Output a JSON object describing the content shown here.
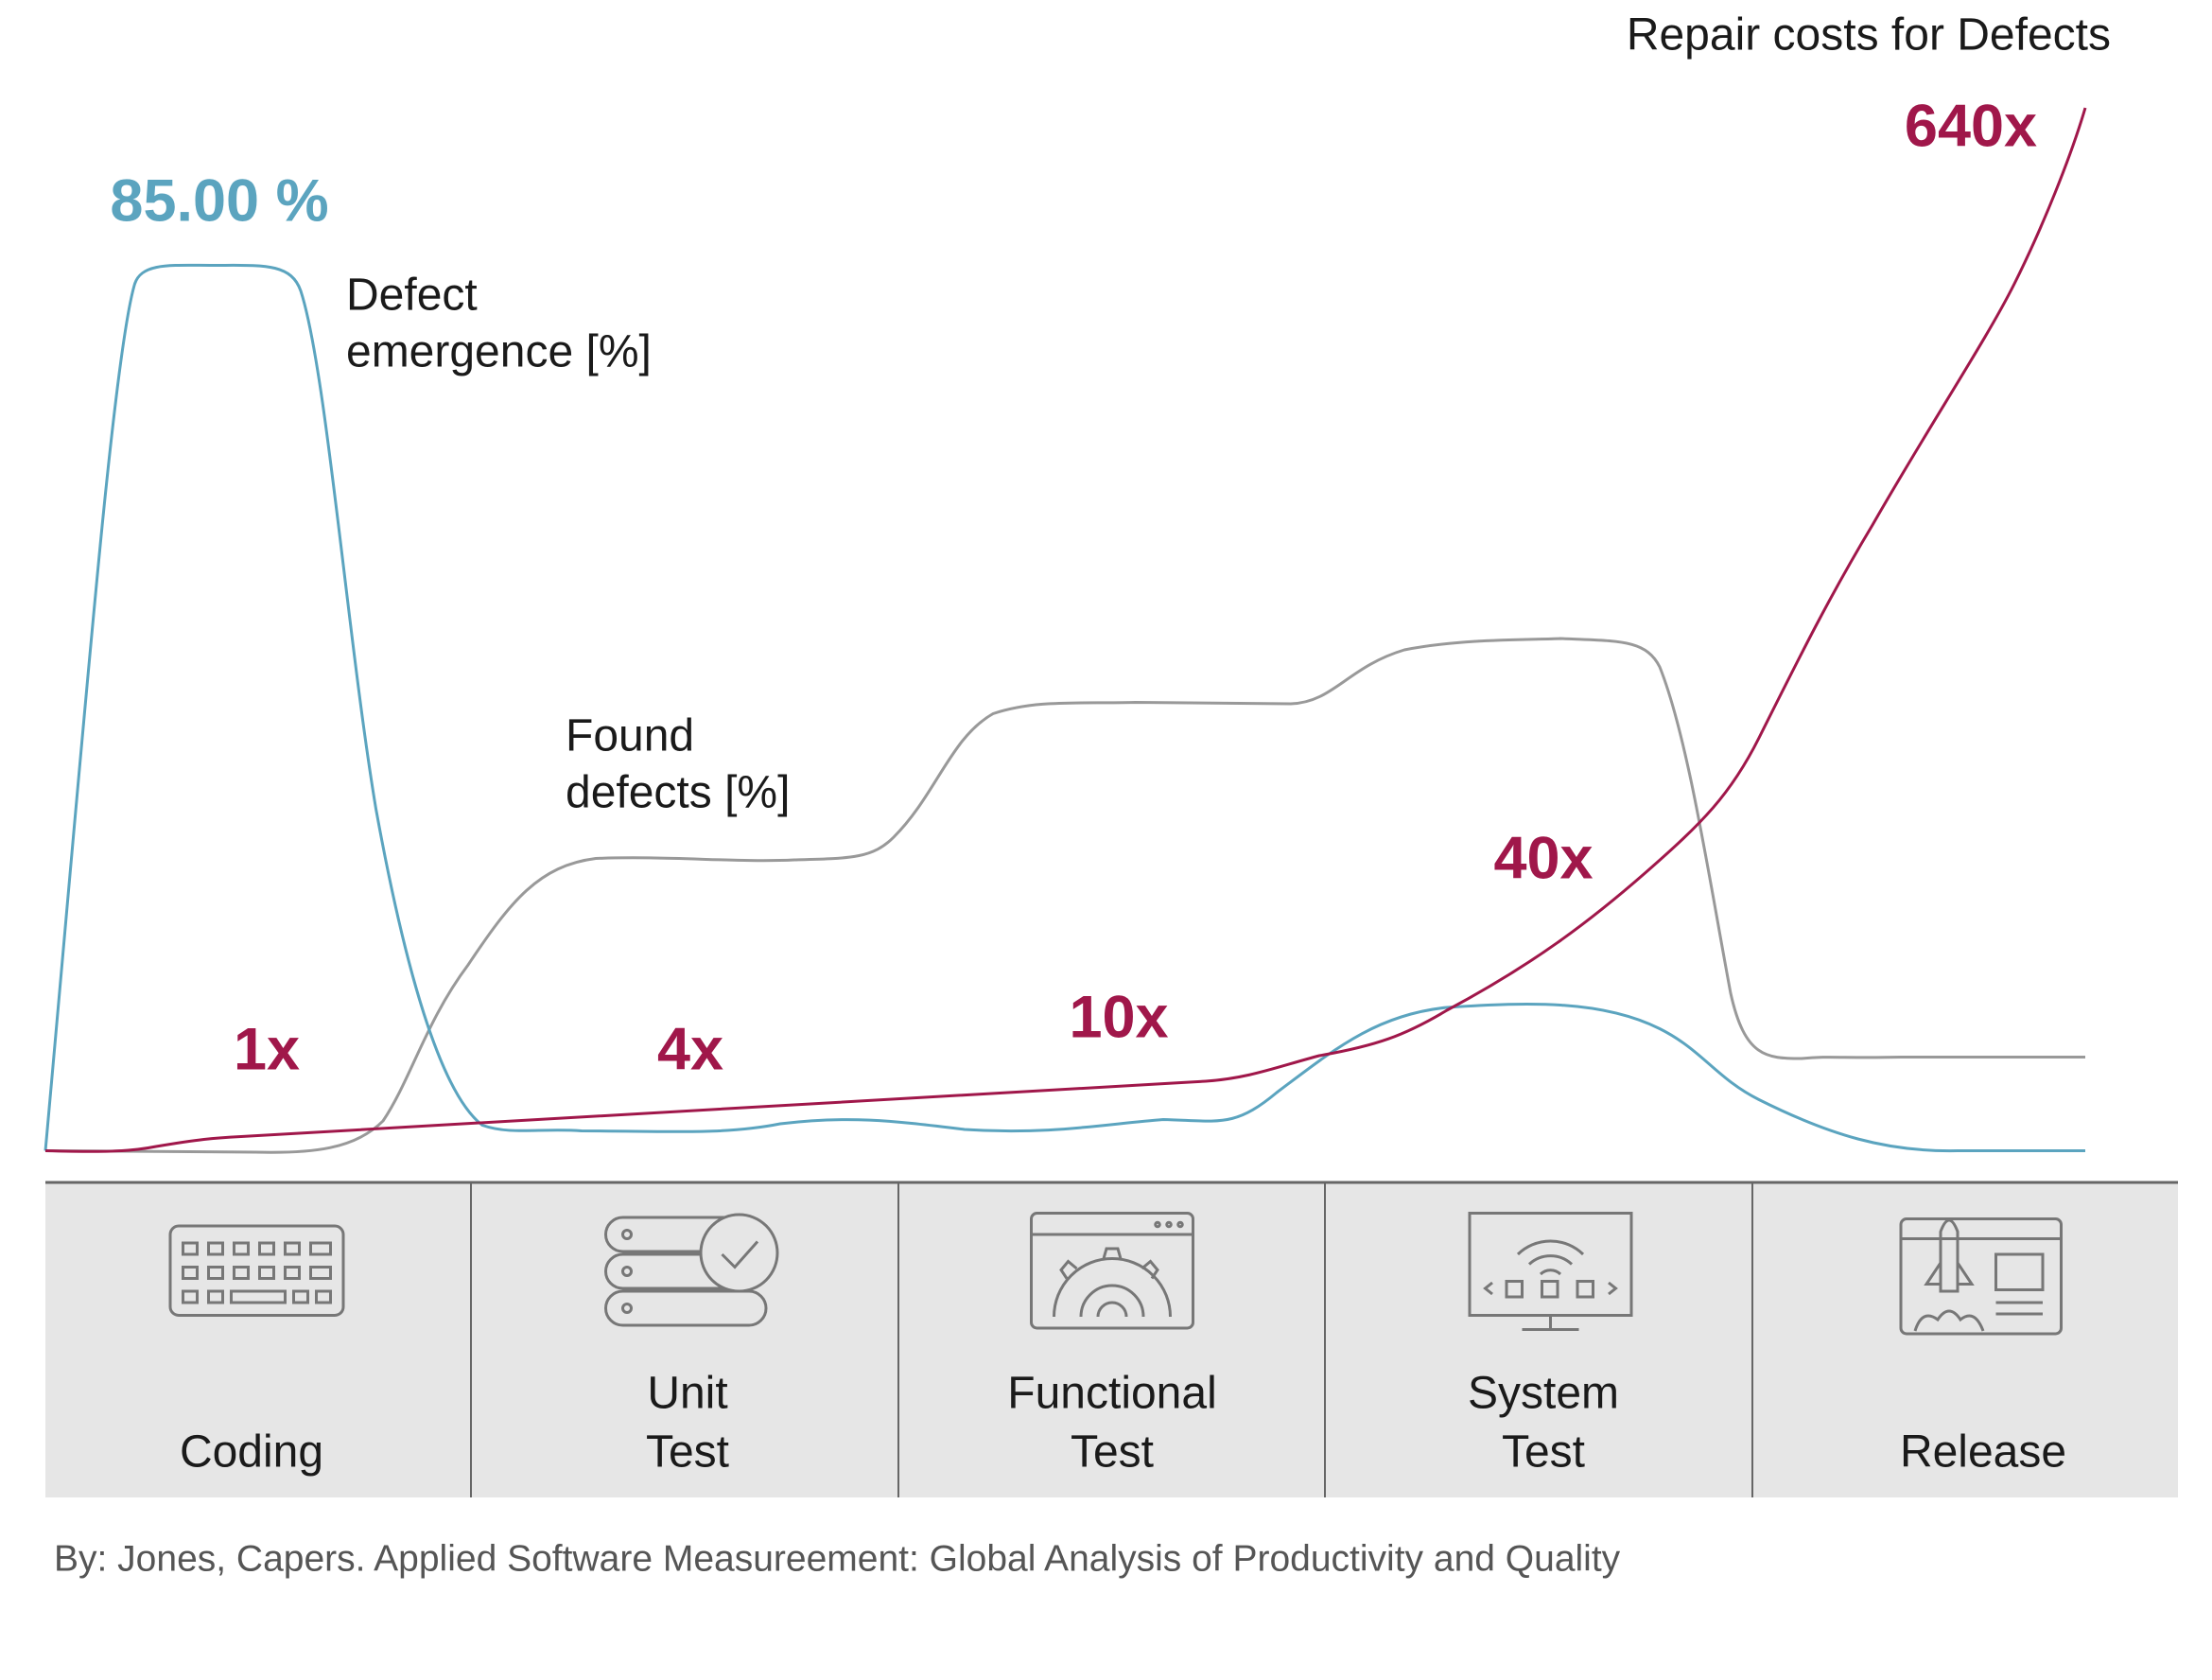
{
  "title": "Repair costs for Defects",
  "peak_label": "85.00 %",
  "curve_labels": {
    "defect_emergence": [
      "Defect",
      "emergence [%]"
    ],
    "found_defects": [
      "Found",
      "defects [%]"
    ]
  },
  "cost_labels": [
    "1x",
    "4x",
    "10x",
    "40x",
    "640x"
  ],
  "phases": [
    [
      "Coding"
    ],
    [
      "Unit",
      "Test"
    ],
    [
      "Functional",
      "Test"
    ],
    [
      "System",
      "Test"
    ],
    [
      "Release"
    ]
  ],
  "source": "By: Jones, Capers. Applied Software Measureement: Global Analysis of Productivity and Quality"
}
